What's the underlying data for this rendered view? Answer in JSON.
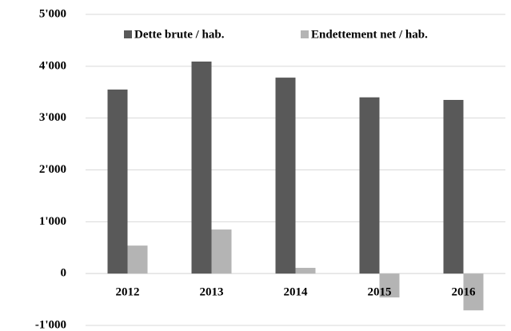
{
  "chart_data": {
    "type": "bar",
    "categories": [
      "2012",
      "2013",
      "2014",
      "2015",
      "2016"
    ],
    "series": [
      {
        "name": "Dette brute / hab.",
        "color": "#595959",
        "values": [
          3550,
          4090,
          3780,
          3400,
          3350
        ]
      },
      {
        "name": "Endettement net / hab.",
        "color": "#b4b4b4",
        "values": [
          540,
          850,
          110,
          -460,
          -710
        ]
      }
    ],
    "ylim": [
      -1000,
      5000
    ],
    "yticks": [
      {
        "value": -1000,
        "label": "-1'000"
      },
      0,
      {
        "value": 1000,
        "label": "1'000"
      },
      {
        "value": 2000,
        "label": "2'000"
      },
      {
        "value": 3000,
        "label": "3'000"
      },
      {
        "value": 4000,
        "label": "4'000"
      },
      {
        "value": 5000,
        "label": "5'000"
      }
    ],
    "grid": true,
    "legend": "top"
  }
}
